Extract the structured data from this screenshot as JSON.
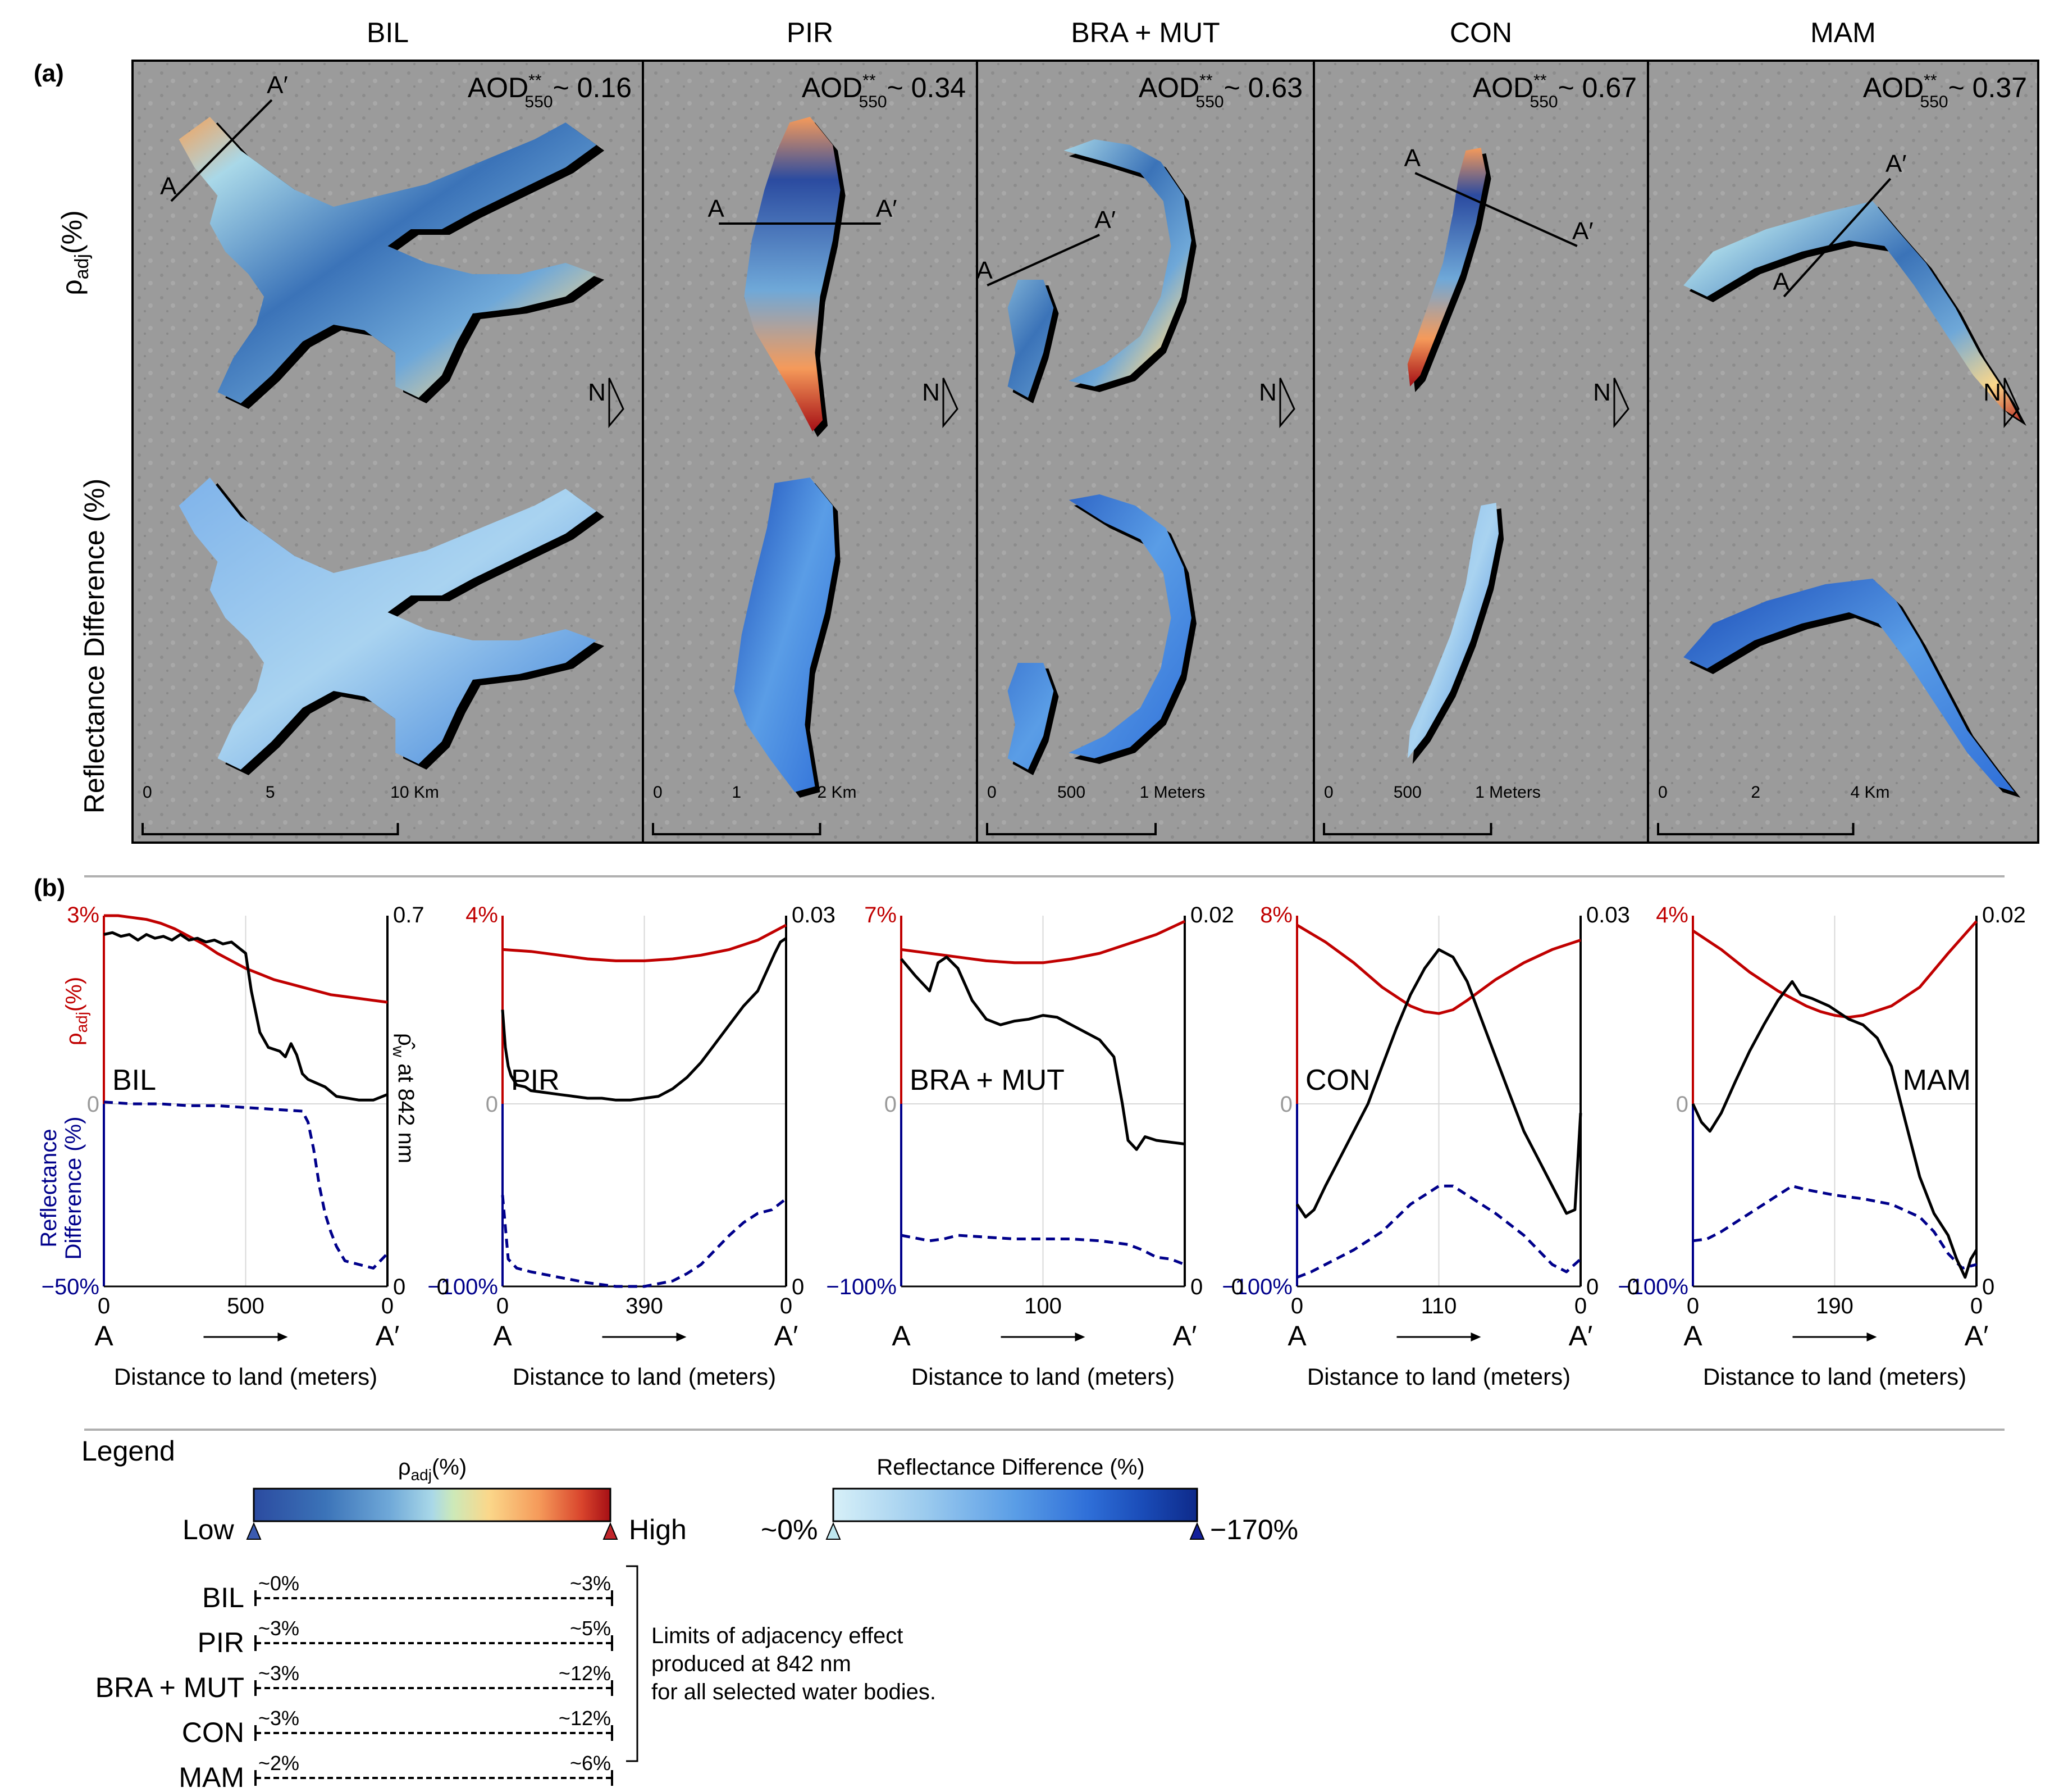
{
  "figure": {
    "panel_a_label": "(a)",
    "panel_b_label": "(b)",
    "row_label_top": "ρ",
    "row_label_top_sub": "adj",
    "row_label_top_suffix": "(%)",
    "row_label_bottom": "Reflectance Difference (%)",
    "aod_prefix": "AOD",
    "aod_sup": "**",
    "aod_sub": "550",
    "section_line_A": "A",
    "section_line_A_prime": "A′",
    "north_label": "N"
  },
  "columns": [
    {
      "id": "BIL",
      "title": "BIL",
      "aod": "~ 0.16",
      "scale_ticks": [
        "0",
        "5",
        "10 Km"
      ]
    },
    {
      "id": "PIR",
      "title": "PIR",
      "aod": "~ 0.34",
      "scale_ticks": [
        "0",
        "1",
        "2 Km"
      ]
    },
    {
      "id": "BRA",
      "title": "BRA + MUT",
      "aod": "~ 0.63",
      "scale_ticks": [
        "0",
        "500",
        "1 Meters"
      ]
    },
    {
      "id": "CON",
      "title": "CON",
      "aod": "~ 0.67",
      "scale_ticks": [
        "0",
        "500",
        "1 Meters"
      ]
    },
    {
      "id": "MAM",
      "title": "MAM",
      "aod": "~ 0.37",
      "scale_ticks": [
        "0",
        "2",
        "4 Km"
      ]
    }
  ],
  "profile_axes": {
    "left_top_label": "ρ",
    "left_top_label_sub": "adj",
    "left_top_label_suffix": "(%)",
    "left_bottom_label_line1": "Reflectance",
    "left_bottom_label_line2": "Difference (%)",
    "right_label": "ρ̂",
    "right_label_sub": "w",
    "right_label_suffix": " at 842 nm",
    "zero": "0",
    "xlabel": "Distance to land (meters)",
    "x_start": "A",
    "x_end": "A′"
  },
  "chart_data": [
    {
      "type": "line",
      "title": "BIL",
      "x_ticks": [
        "0",
        "500",
        "0"
      ],
      "left_top": "3%",
      "left_mid": "0",
      "left_bottom": "−50%",
      "right_top": "0.7",
      "right_bottom": "0",
      "series": [
        {
          "name": "ρadj (%)",
          "color": "#c00000",
          "dash": "solid",
          "x": [
            0,
            0.05,
            0.1,
            0.15,
            0.2,
            0.25,
            0.3,
            0.35,
            0.4,
            0.45,
            0.5,
            0.55,
            0.6,
            0.65,
            0.7,
            0.75,
            0.8,
            0.85,
            0.9,
            0.95,
            1.0
          ],
          "y": [
            1.0,
            1.0,
            0.99,
            0.98,
            0.96,
            0.93,
            0.89,
            0.85,
            0.8,
            0.76,
            0.72,
            0.69,
            0.66,
            0.64,
            0.62,
            0.6,
            0.58,
            0.57,
            0.56,
            0.55,
            0.54
          ]
        },
        {
          "name": "Reflectance Difference (%)",
          "color": "#00008b",
          "dash": "dash",
          "x": [
            0,
            0.1,
            0.2,
            0.3,
            0.4,
            0.5,
            0.6,
            0.7,
            0.72,
            0.74,
            0.76,
            0.78,
            0.8,
            0.82,
            0.85,
            0.9,
            0.95,
            1.0
          ],
          "y": [
            0.01,
            0.0,
            0.0,
            -0.01,
            -0.01,
            -0.02,
            -0.03,
            -0.04,
            -0.1,
            -0.25,
            -0.45,
            -0.6,
            -0.7,
            -0.78,
            -0.86,
            -0.88,
            -0.9,
            -0.82
          ]
        },
        {
          "name": "ρ̂w at 842 nm",
          "color": "#000000",
          "dash": "solid",
          "x": [
            0,
            0.03,
            0.06,
            0.09,
            0.12,
            0.15,
            0.18,
            0.21,
            0.24,
            0.27,
            0.3,
            0.33,
            0.36,
            0.39,
            0.42,
            0.45,
            0.5,
            0.52,
            0.55,
            0.58,
            0.62,
            0.64,
            0.66,
            0.68,
            0.7,
            0.72,
            0.75,
            0.78,
            0.82,
            0.86,
            0.9,
            0.95,
            1.0
          ],
          "y": [
            0.9,
            0.91,
            0.89,
            0.9,
            0.87,
            0.9,
            0.88,
            0.89,
            0.87,
            0.9,
            0.87,
            0.88,
            0.86,
            0.87,
            0.85,
            0.86,
            0.8,
            0.6,
            0.38,
            0.3,
            0.28,
            0.25,
            0.32,
            0.26,
            0.16,
            0.13,
            0.11,
            0.09,
            0.04,
            0.03,
            0.02,
            0.02,
            0.05
          ]
        }
      ]
    },
    {
      "type": "line",
      "title": "PIR",
      "x_ticks": [
        "0",
        "390",
        "0"
      ],
      "left_top": "4%",
      "left_mid": "0",
      "left_bottom": "0",
      "left_bottom2": "−100%",
      "right_top": "0.03",
      "right_bottom": "0",
      "series": [
        {
          "name": "ρadj (%)",
          "color": "#c00000",
          "dash": "solid",
          "x": [
            0,
            0.1,
            0.2,
            0.3,
            0.4,
            0.5,
            0.6,
            0.7,
            0.8,
            0.9,
            1.0
          ],
          "y": [
            0.82,
            0.81,
            0.79,
            0.77,
            0.76,
            0.76,
            0.77,
            0.79,
            0.82,
            0.87,
            0.95
          ]
        },
        {
          "name": "Reflectance Difference (%)",
          "color": "#00008b",
          "dash": "dash",
          "x": [
            0,
            0.02,
            0.05,
            0.1,
            0.2,
            0.3,
            0.4,
            0.5,
            0.6,
            0.65,
            0.7,
            0.75,
            0.8,
            0.85,
            0.9,
            0.95,
            1.0
          ],
          "y": [
            -0.5,
            -0.85,
            -0.9,
            -0.92,
            -0.95,
            -0.98,
            -1.0,
            -1.0,
            -0.97,
            -0.93,
            -0.88,
            -0.8,
            -0.72,
            -0.65,
            -0.6,
            -0.58,
            -0.52
          ]
        },
        {
          "name": "ρ̂w at 842 nm",
          "color": "#000000",
          "dash": "solid",
          "x": [
            0,
            0.01,
            0.02,
            0.03,
            0.05,
            0.08,
            0.1,
            0.15,
            0.2,
            0.25,
            0.3,
            0.35,
            0.4,
            0.45,
            0.5,
            0.55,
            0.6,
            0.65,
            0.7,
            0.75,
            0.8,
            0.85,
            0.9,
            0.93,
            0.96,
            0.98,
            1.0
          ],
          "y": [
            0.5,
            0.3,
            0.2,
            0.15,
            0.1,
            0.09,
            0.07,
            0.06,
            0.05,
            0.04,
            0.03,
            0.03,
            0.02,
            0.02,
            0.03,
            0.04,
            0.08,
            0.14,
            0.22,
            0.32,
            0.42,
            0.52,
            0.6,
            0.7,
            0.8,
            0.86,
            0.88
          ]
        }
      ]
    },
    {
      "type": "line",
      "title": "BRA + MUT",
      "x_ticks": [
        "100"
      ],
      "left_top": "7%",
      "left_mid": "0",
      "left_bottom": "−100%",
      "right_top": "0.02",
      "right_bottom": "0",
      "series": [
        {
          "name": "ρadj (%)",
          "color": "#c00000",
          "dash": "solid",
          "x": [
            0,
            0.1,
            0.2,
            0.3,
            0.4,
            0.5,
            0.6,
            0.7,
            0.8,
            0.9,
            1.0
          ],
          "y": [
            0.82,
            0.8,
            0.78,
            0.76,
            0.75,
            0.75,
            0.77,
            0.8,
            0.85,
            0.9,
            0.97
          ]
        },
        {
          "name": "Reflectance Difference (%)",
          "color": "#00008b",
          "dash": "dash",
          "x": [
            0,
            0.1,
            0.15,
            0.2,
            0.3,
            0.4,
            0.5,
            0.6,
            0.7,
            0.8,
            0.85,
            0.9,
            0.95,
            1.0
          ],
          "y": [
            -0.72,
            -0.75,
            -0.74,
            -0.72,
            -0.73,
            -0.74,
            -0.74,
            -0.74,
            -0.75,
            -0.77,
            -0.8,
            -0.84,
            -0.85,
            -0.88
          ]
        },
        {
          "name": "ρ̂w at 842 nm",
          "color": "#000000",
          "dash": "solid",
          "x": [
            0,
            0.05,
            0.1,
            0.13,
            0.16,
            0.2,
            0.25,
            0.3,
            0.35,
            0.4,
            0.45,
            0.5,
            0.55,
            0.6,
            0.65,
            0.7,
            0.75,
            0.78,
            0.8,
            0.83,
            0.86,
            0.9,
            0.95,
            1.0
          ],
          "y": [
            0.77,
            0.68,
            0.6,
            0.75,
            0.78,
            0.72,
            0.55,
            0.45,
            0.42,
            0.44,
            0.45,
            0.47,
            0.46,
            0.42,
            0.38,
            0.34,
            0.25,
            0.0,
            -0.2,
            -0.25,
            -0.18,
            -0.2,
            -0.21,
            -0.22
          ]
        }
      ]
    },
    {
      "type": "line",
      "title": "CON",
      "x_ticks": [
        "0",
        "110",
        "0"
      ],
      "left_top": "8%",
      "left_mid": "0",
      "left_bottom": "0",
      "left_bottom2": "−100%",
      "right_top": "0.03",
      "right_bottom": "0",
      "series": [
        {
          "name": "ρadj (%)",
          "color": "#c00000",
          "dash": "solid",
          "x": [
            0,
            0.1,
            0.2,
            0.3,
            0.4,
            0.45,
            0.5,
            0.55,
            0.6,
            0.7,
            0.8,
            0.9,
            1.0
          ],
          "y": [
            0.95,
            0.86,
            0.75,
            0.62,
            0.52,
            0.49,
            0.48,
            0.5,
            0.55,
            0.66,
            0.75,
            0.82,
            0.87
          ]
        },
        {
          "name": "Reflectance Difference (%)",
          "color": "#00008b",
          "dash": "dash",
          "x": [
            0,
            0.05,
            0.1,
            0.2,
            0.3,
            0.4,
            0.5,
            0.55,
            0.6,
            0.7,
            0.8,
            0.85,
            0.9,
            0.95,
            1.0
          ],
          "y": [
            -0.95,
            -0.92,
            -0.88,
            -0.8,
            -0.7,
            -0.55,
            -0.45,
            -0.45,
            -0.5,
            -0.6,
            -0.72,
            -0.8,
            -0.88,
            -0.92,
            -0.85
          ]
        },
        {
          "name": "ρ̂w at 842 nm",
          "color": "#000000",
          "dash": "solid",
          "x": [
            0,
            0.03,
            0.06,
            0.1,
            0.15,
            0.2,
            0.25,
            0.3,
            0.35,
            0.4,
            0.45,
            0.5,
            0.55,
            0.6,
            0.65,
            0.7,
            0.75,
            0.8,
            0.85,
            0.9,
            0.95,
            0.98,
            1.0
          ],
          "y": [
            -0.55,
            -0.62,
            -0.58,
            -0.45,
            -0.3,
            -0.15,
            0.0,
            0.2,
            0.4,
            0.58,
            0.72,
            0.82,
            0.78,
            0.65,
            0.45,
            0.25,
            0.05,
            -0.15,
            -0.3,
            -0.45,
            -0.6,
            -0.58,
            -0.05
          ]
        }
      ]
    },
    {
      "type": "line",
      "title": "MAM",
      "x_ticks": [
        "0",
        "190",
        "0"
      ],
      "left_top": "4%",
      "left_mid": "0",
      "left_bottom": "0",
      "left_bottom2": "−100%",
      "right_top": "0.02",
      "right_bottom": "0",
      "series": [
        {
          "name": "ρadj (%)",
          "color": "#c00000",
          "dash": "solid",
          "x": [
            0,
            0.1,
            0.2,
            0.3,
            0.4,
            0.45,
            0.5,
            0.55,
            0.6,
            0.7,
            0.8,
            0.9,
            1.0
          ],
          "y": [
            0.92,
            0.82,
            0.7,
            0.6,
            0.52,
            0.49,
            0.47,
            0.46,
            0.47,
            0.52,
            0.62,
            0.8,
            0.97
          ]
        },
        {
          "name": "Reflectance Difference (%)",
          "color": "#00008b",
          "dash": "dash",
          "x": [
            0,
            0.05,
            0.1,
            0.2,
            0.3,
            0.35,
            0.4,
            0.5,
            0.6,
            0.7,
            0.8,
            0.85,
            0.9,
            0.95,
            1.0
          ],
          "y": [
            -0.75,
            -0.74,
            -0.7,
            -0.6,
            -0.5,
            -0.45,
            -0.47,
            -0.5,
            -0.52,
            -0.55,
            -0.62,
            -0.7,
            -0.82,
            -0.9,
            -0.88
          ]
        },
        {
          "name": "ρ̂w at 842 nm",
          "color": "#000000",
          "dash": "solid",
          "x": [
            0,
            0.03,
            0.06,
            0.1,
            0.15,
            0.2,
            0.25,
            0.3,
            0.35,
            0.38,
            0.42,
            0.48,
            0.55,
            0.6,
            0.65,
            0.7,
            0.75,
            0.8,
            0.85,
            0.9,
            0.93,
            0.96,
            0.98,
            1.0
          ],
          "y": [
            0.0,
            -0.1,
            -0.15,
            -0.05,
            0.12,
            0.28,
            0.42,
            0.55,
            0.65,
            0.58,
            0.56,
            0.52,
            0.45,
            0.42,
            0.35,
            0.2,
            -0.1,
            -0.4,
            -0.6,
            -0.72,
            -0.85,
            -0.95,
            -0.85,
            -0.8
          ]
        }
      ]
    }
  ],
  "legend": {
    "title": "Legend",
    "rho_label": "ρ",
    "rho_label_sub": "adj",
    "rho_label_suffix": "(%)",
    "low": "Low",
    "high": "High",
    "diff_label": "Reflectance Difference (%)",
    "diff_low": "~0%",
    "diff_high": "−170%",
    "ramp_colors_rho": [
      "#2b4ba0",
      "#3b73b8",
      "#6fa8d8",
      "#a9d8e8",
      "#cde9b8",
      "#fbd78a",
      "#f59a5a",
      "#d9442c",
      "#a50f15"
    ],
    "ramp_colors_diff": [
      "#d7f0f8",
      "#9ccbee",
      "#5a9de6",
      "#2f6fd8",
      "#1a4cb8",
      "#0e2a8a"
    ],
    "limits": [
      {
        "name": "BIL",
        "low": "~0%",
        "high": "~3%"
      },
      {
        "name": "PIR",
        "low": "~3%",
        "high": "~5%"
      },
      {
        "name": "BRA + MUT",
        "low": "~3%",
        "high": "~12%"
      },
      {
        "name": "CON",
        "low": "~3%",
        "high": "~12%"
      },
      {
        "name": "MAM",
        "low": "~2%",
        "high": "~6%"
      }
    ],
    "note_line1": "Limits of adjacency effect",
    "note_line2": "produced at 842 nm",
    "note_line3": "for all selected water bodies."
  },
  "colors": {
    "rho_line": "#c00000",
    "diff_line": "#00008b",
    "rhow_line": "#000000",
    "map_background": "#9a9a9a"
  }
}
